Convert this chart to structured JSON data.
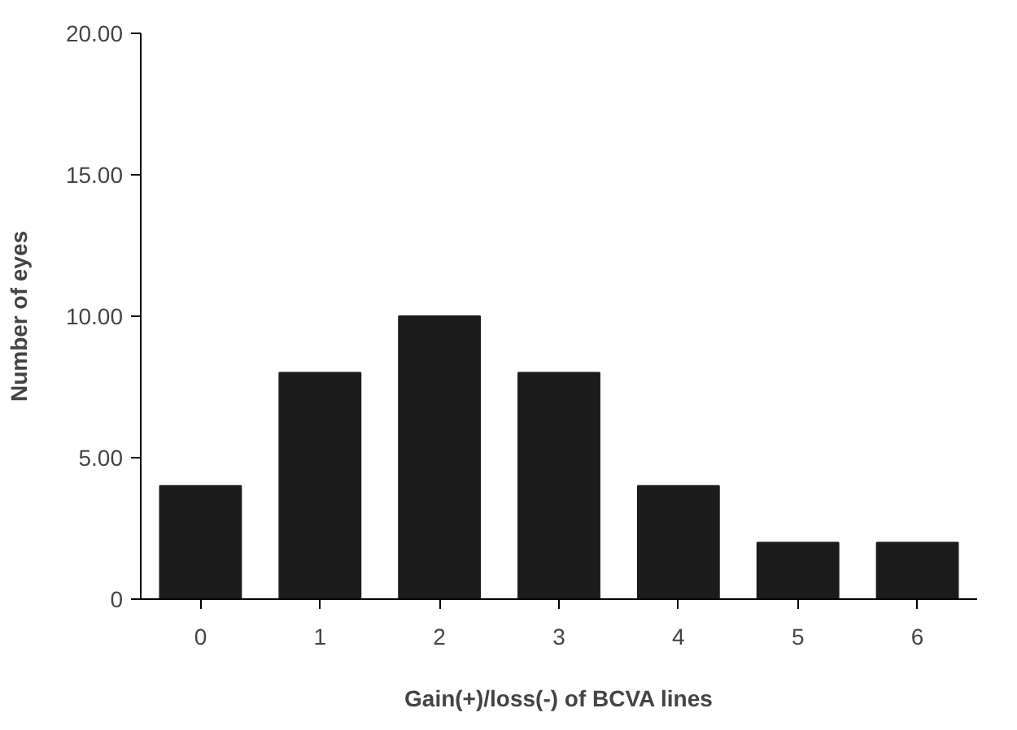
{
  "chart_data": {
    "type": "bar",
    "xlabel": "Gain(+)/loss(-) of BCVA lines",
    "ylabel": "Number of eyes",
    "categories": [
      "0",
      "1",
      "2",
      "3",
      "4",
      "5",
      "6"
    ],
    "values": [
      4,
      8,
      10,
      8,
      4,
      2,
      2
    ],
    "color": "#1c1c1c",
    "ylim": [
      0,
      20
    ],
    "yticks": [
      0,
      {
        "value": 5,
        "label": "5.00"
      },
      {
        "value": 10,
        "label": "10.00"
      },
      {
        "value": 15,
        "label": "15.00"
      },
      {
        "value": 20,
        "label": "20.00"
      }
    ],
    "grid": false
  }
}
